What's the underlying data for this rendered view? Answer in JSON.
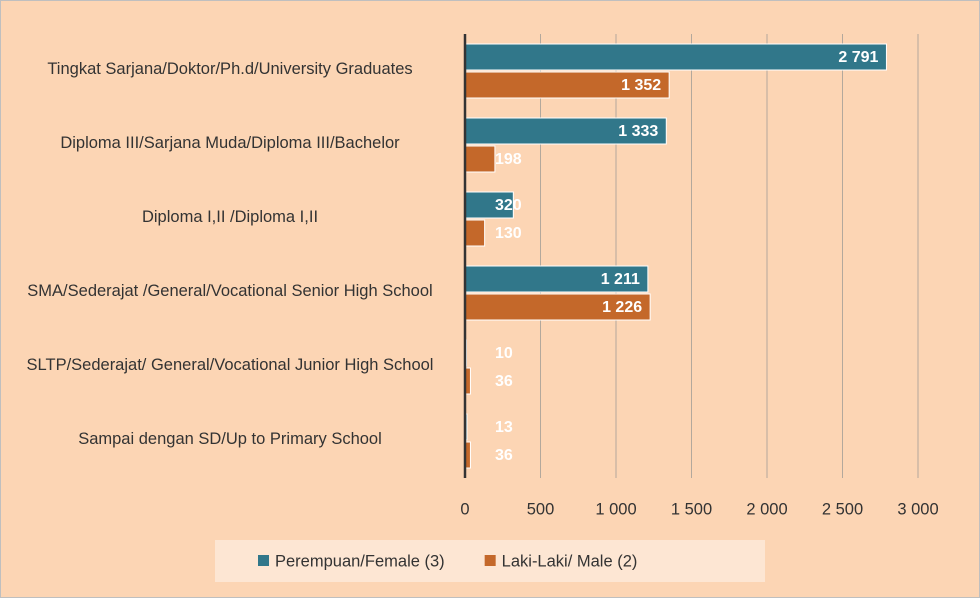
{
  "chart_data": {
    "type": "bar",
    "orientation": "horizontal",
    "categories": [
      "Tingkat Sarjana/Doktor/Ph.d/University Graduates",
      "Diploma III/Sarjana Muda/Diploma III/Bachelor",
      "Diploma I,II /Diploma I,II",
      "SMA/Sederajat /General/Vocational Senior High School",
      "SLTP/Sederajat/ General/Vocational Junior High School",
      "Sampai dengan SD/Up to Primary School"
    ],
    "series": [
      {
        "name": "Perempuan/Female (3)",
        "color": "#31778a",
        "values": [
          2791,
          1333,
          320,
          1211,
          10,
          13
        ],
        "value_labels": [
          "2 791",
          "1 333",
          "320",
          "1 211",
          "10",
          "13"
        ]
      },
      {
        "name": "Laki-Laki/ Male (2)",
        "color": "#c4682a",
        "values": [
          1352,
          198,
          130,
          1226,
          36,
          36
        ],
        "value_labels": [
          "1 352",
          "198",
          "130",
          "1 226",
          "36",
          "36"
        ]
      }
    ],
    "xlim": [
      0,
      3000
    ],
    "xticks": [
      0,
      500,
      {
        "value": 1000,
        "label": "1 000"
      },
      {
        "value": 1500,
        "label": "1 500"
      },
      {
        "value": 2000,
        "label": "2 000"
      },
      {
        "value": 2500,
        "label": "2 500"
      },
      {
        "value": 3000,
        "label": "3 000"
      }
    ],
    "grid": true,
    "legend": "bottom"
  }
}
